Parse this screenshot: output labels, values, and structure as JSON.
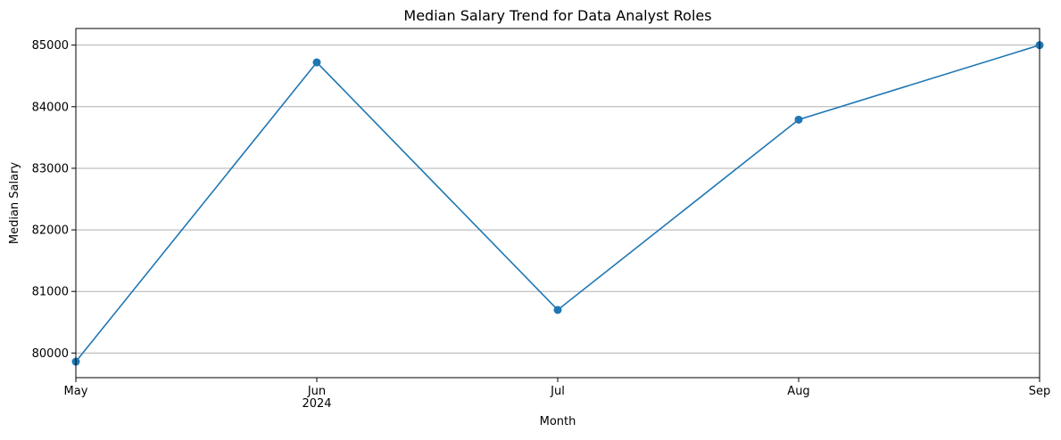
{
  "chart_data": {
    "type": "line",
    "title": "Median Salary Trend for Data Analyst Roles",
    "xlabel": "Month",
    "ylabel": "Median Salary",
    "categories": [
      "2024-05",
      "2024-06",
      "2024-07",
      "2024-08",
      "2024-09"
    ],
    "x_tick_labels": [
      "May",
      "Jun",
      "Jul",
      "Aug",
      "Sep"
    ],
    "x_secondary_label": "2024",
    "series": [
      {
        "values": [
          79860,
          84720,
          80700,
          83790,
          85000
        ],
        "color": "#1f77b4",
        "marker": "circle"
      }
    ],
    "yticks": [
      80000,
      81000,
      82000,
      83000,
      84000,
      85000
    ],
    "ylim": [
      79600,
      85270
    ],
    "grid": "horizontal",
    "legend": "none"
  }
}
